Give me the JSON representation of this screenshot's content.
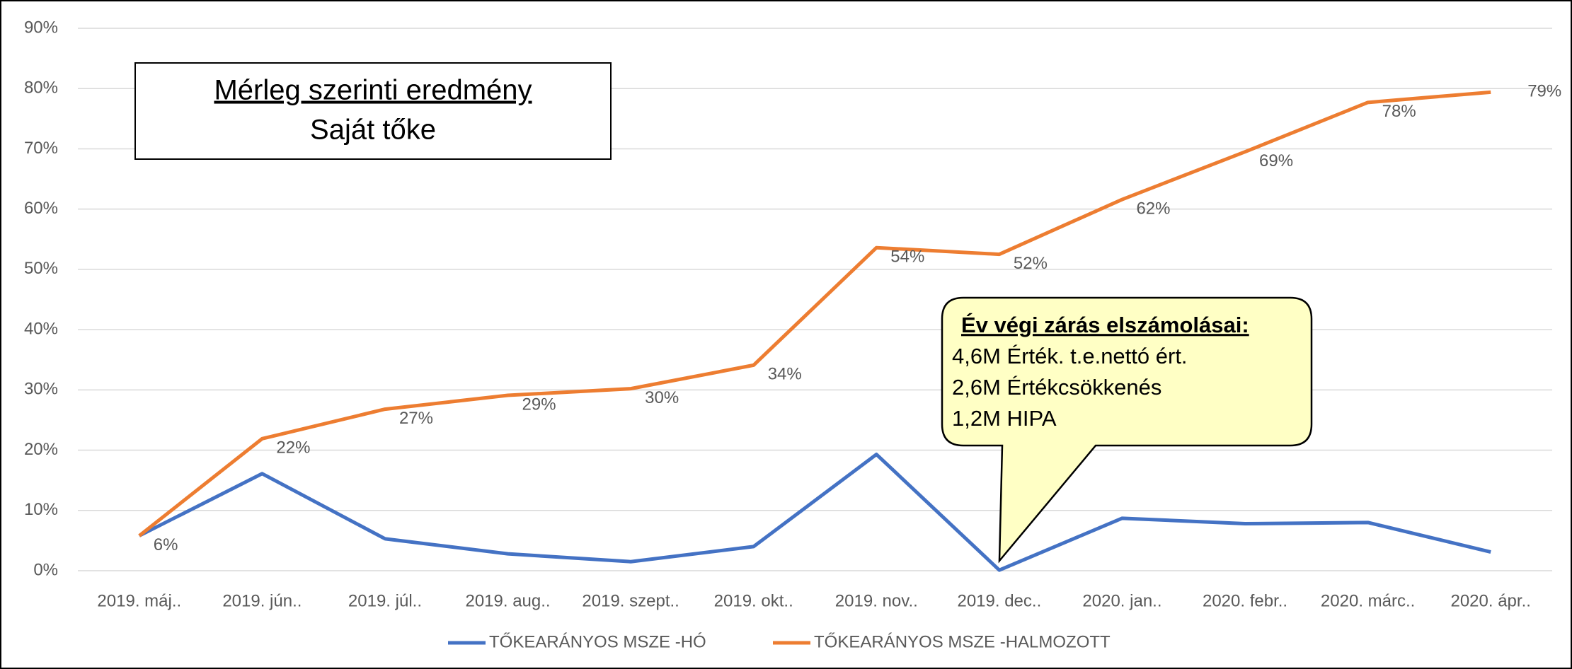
{
  "chart_data": {
    "type": "line",
    "categories": [
      "2019. máj..",
      "2019. jún..",
      "2019. júl..",
      "2019. aug..",
      "2019. szept..",
      "2019. okt..",
      "2019. nov..",
      "2019. dec..",
      "2020. jan..",
      "2020. febr..",
      "2020. márc..",
      "2020. ápr.."
    ],
    "series": [
      {
        "name": "TŐKEARÁNYOS MSZE -HÓ",
        "color": "#4472c4",
        "values": [
          5.8,
          16.1,
          5.3,
          2.8,
          1.5,
          4.0,
          19.3,
          0.1,
          8.7,
          7.8,
          8.0,
          3.1
        ]
      },
      {
        "name": "TŐKEARÁNYOS MSZE -HALMOZOTT",
        "color": "#ed7d31",
        "values": [
          5.8,
          21.9,
          26.8,
          29.1,
          30.2,
          34.1,
          53.6,
          52.5,
          61.6,
          69.5,
          77.7,
          79.4
        ],
        "value_labels": [
          "6%",
          "22%",
          "27%",
          "29%",
          "30%",
          "34%",
          "54%",
          "52%",
          "62%",
          "69%",
          "78%",
          "79%"
        ]
      }
    ],
    "ylim": [
      0,
      90
    ],
    "yticks": [
      {
        "value": 0,
        "label": "0%"
      },
      {
        "value": 10,
        "label": "10%"
      },
      {
        "value": 20,
        "label": "20%"
      },
      {
        "value": 30,
        "label": "30%"
      },
      {
        "value": 40,
        "label": "40%"
      },
      {
        "value": 50,
        "label": "50%"
      },
      {
        "value": 60,
        "label": "60%"
      },
      {
        "value": 70,
        "label": "70%"
      },
      {
        "value": 80,
        "label": "80%"
      },
      {
        "value": 90,
        "label": "90%"
      }
    ],
    "grid": true,
    "legend": "bottom",
    "annotations": {
      "title": "Mérleg szerinti eredmény",
      "subtitle": "Saját tőke",
      "callout": {
        "heading": "Év végi zárás elszámolásai:",
        "lines": [
          "4,6M Érték. t.e.nettó ért.",
          "2,6M Értékcsökkenés",
          "1,2M HIPA"
        ]
      }
    }
  }
}
